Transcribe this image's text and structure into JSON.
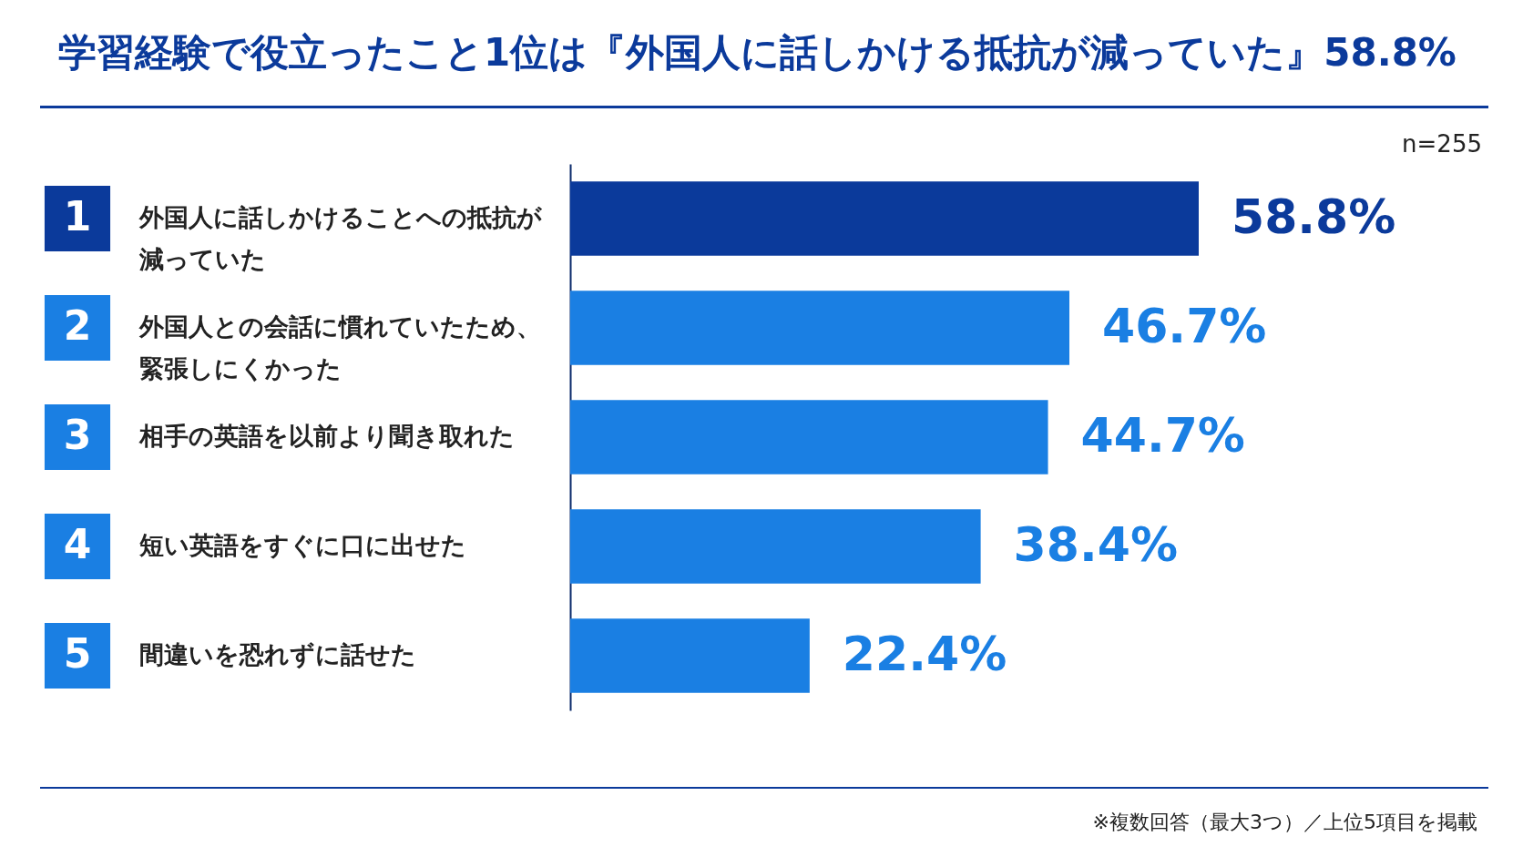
{
  "chart_data": {
    "type": "bar",
    "orientation": "horizontal",
    "title": "学習経験で役立ったこと1位は『外国人に話しかける抵抗が減っていた』58.8%",
    "categories": [
      "外国人に話しかけることへの抵抗が減っていた",
      "外国人との会話に慣れていたため、緊張しにくかった",
      "相手の英語を以前より聞き取れた",
      "短い英語をすぐに口に出せた",
      "間違いを恐れずに話せた"
    ],
    "values": [
      58.8,
      46.7,
      44.7,
      38.4,
      22.4
    ],
    "colors": [
      "#0b3a9b",
      "#1a7fe3",
      "#1a7fe3",
      "#1a7fe3",
      "#1a7fe3"
    ],
    "value_labels": [
      "58.8%",
      "46.7%",
      "44.7%",
      "38.4%",
      "22.4%"
    ],
    "annotations": [
      "1",
      "2",
      "3",
      "4",
      "5",
      "n=255",
      "※複数回答（最大3つ）／上位5項目を掲載"
    ],
    "grid": false
  }
}
